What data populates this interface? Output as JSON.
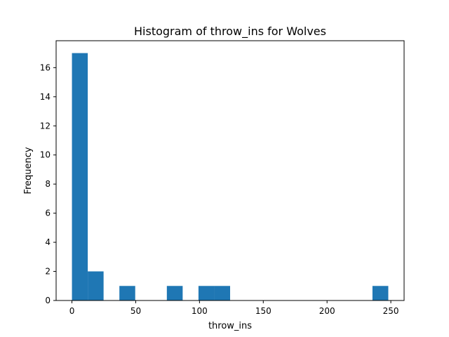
{
  "chart_data": {
    "type": "bar",
    "title": "Histogram of throw_ins for Wolves",
    "xlabel": "throw_ins",
    "ylabel": "Frequency",
    "bin_edges": [
      0,
      12.4,
      24.8,
      37.2,
      49.6,
      62.0,
      74.4,
      86.8,
      99.2,
      111.6,
      124.0,
      136.4,
      148.8,
      161.2,
      173.6,
      186.0,
      198.4,
      210.8,
      223.2,
      235.6,
      248.0
    ],
    "values": [
      17,
      2,
      0,
      1,
      0,
      0,
      1,
      0,
      1,
      1,
      0,
      0,
      0,
      0,
      0,
      0,
      0,
      0,
      0,
      1
    ],
    "xlim": [
      -12.4,
      260.4
    ],
    "ylim": [
      0,
      17.85
    ],
    "xticks": [
      0,
      50,
      100,
      150,
      200,
      250
    ],
    "xtick_labels": [
      "0",
      "50",
      "100",
      "150",
      "200",
      "250"
    ],
    "yticks": [
      0,
      2,
      4,
      6,
      8,
      10,
      12,
      14,
      16
    ],
    "ytick_labels": [
      "0",
      "2",
      "4",
      "6",
      "8",
      "10",
      "12",
      "14",
      "16"
    ],
    "bar_color": "#1f77b4",
    "grid": false,
    "legend": false
  }
}
